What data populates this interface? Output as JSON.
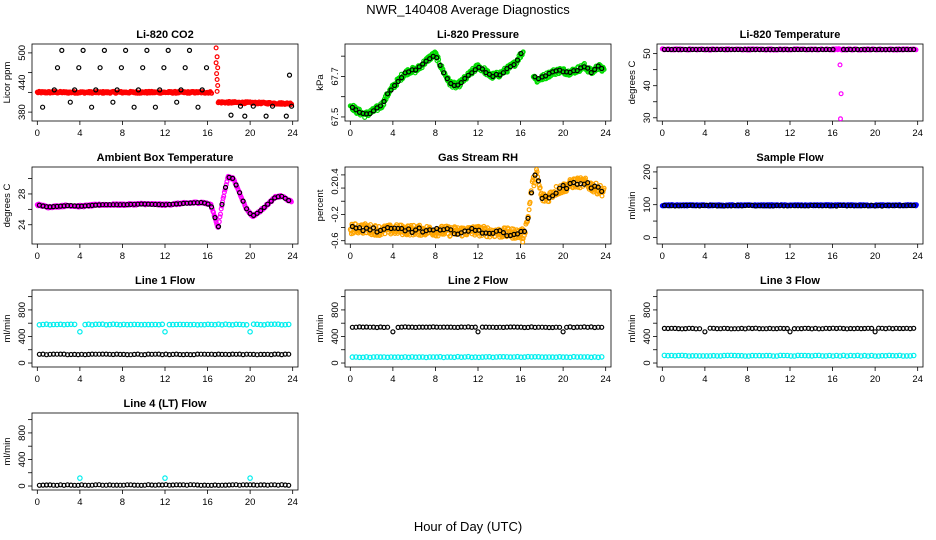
{
  "figure": {
    "title": "NWR_140408  Average Diagnostics",
    "xlabel": "Hour of Day (UTC)"
  },
  "colors": {
    "red": "#ff0000",
    "black": "#000000",
    "green": "#00dd00",
    "magenta": "#ff00ff",
    "orange": "#ffa500",
    "blue": "#0000ff",
    "cyan": "#00eeee"
  },
  "chart_data": [
    {
      "type": "scatter",
      "title": "Li-820 CO2",
      "ylabel": "Licor ppm",
      "xlim": [
        -0.5,
        24.5
      ],
      "ylim": [
        362,
        518
      ],
      "xticks": [
        0,
        4,
        8,
        12,
        16,
        20,
        24
      ],
      "xtick_labels": [
        "0",
        "4",
        "8",
        "12",
        "16",
        "20",
        "24"
      ],
      "yticks": [
        380,
        420,
        460,
        500
      ],
      "ytick_labels": [
        "380",
        "440",
        "500"
      ],
      "series": [
        {
          "name": "raw",
          "style": "red",
          "generator": "co2_red"
        },
        {
          "name": "outliers",
          "style": "black",
          "points": [
            [
              0.5,
              390
            ],
            [
              1.6,
              425
            ],
            [
              1.9,
              470
            ],
            [
              2.3,
              505
            ],
            [
              3.1,
              400
            ],
            [
              3.5,
              425
            ],
            [
              3.9,
              470
            ],
            [
              4.3,
              505
            ],
            [
              5.1,
              390
            ],
            [
              5.5,
              425
            ],
            [
              5.9,
              470
            ],
            [
              6.3,
              505
            ],
            [
              7.1,
              400
            ],
            [
              7.5,
              425
            ],
            [
              7.9,
              470
            ],
            [
              8.3,
              505
            ],
            [
              9.1,
              390
            ],
            [
              9.5,
              425
            ],
            [
              9.9,
              470
            ],
            [
              10.3,
              505
            ],
            [
              11.1,
              390
            ],
            [
              11.5,
              425
            ],
            [
              11.9,
              470
            ],
            [
              12.3,
              505
            ],
            [
              13.1,
              400
            ],
            [
              13.5,
              425
            ],
            [
              13.9,
              470
            ],
            [
              14.3,
              505
            ],
            [
              15.1,
              390
            ],
            [
              15.5,
              425
            ],
            [
              15.9,
              470
            ],
            [
              18.2,
              374
            ],
            [
              19.1,
              392
            ],
            [
              19.5,
              372
            ],
            [
              20.3,
              392
            ],
            [
              21.5,
              372
            ],
            [
              22.1,
              392
            ],
            [
              23.4,
              372
            ],
            [
              23.7,
              455
            ],
            [
              23.9,
              392
            ]
          ]
        }
      ]
    },
    {
      "type": "scatter",
      "title": "Li-820 Pressure",
      "ylabel": "kPa",
      "xlim": [
        -0.5,
        24.5
      ],
      "ylim": [
        67.48,
        67.86
      ],
      "xticks": [
        0,
        4,
        8,
        12,
        16,
        20,
        24
      ],
      "xtick_labels": [
        "0",
        "4",
        "8",
        "12",
        "16",
        "20",
        "24"
      ],
      "yticks": [
        67.5,
        67.6,
        67.7,
        67.8
      ],
      "ytick_labels": [
        "67.5",
        "67.7"
      ],
      "series": [
        {
          "name": "raw",
          "style": "green",
          "generator": "pressure_green"
        },
        {
          "name": "average",
          "style": "black",
          "generator": "pressure_black"
        }
      ]
    },
    {
      "type": "scatter",
      "title": "Li-820 Temperature",
      "ylabel": "degrees C",
      "xlim": [
        -0.5,
        24.5
      ],
      "ylim": [
        29,
        53
      ],
      "xticks": [
        0,
        4,
        8,
        12,
        16,
        20,
        24
      ],
      "xtick_labels": [
        "0",
        "4",
        "8",
        "12",
        "16",
        "20",
        "24"
      ],
      "yticks": [
        30,
        35,
        40,
        45,
        50
      ],
      "ytick_labels": [
        "30",
        "40",
        "50"
      ],
      "series": [
        {
          "name": "raw",
          "style": "magenta",
          "generator": "temp_magenta"
        },
        {
          "name": "average",
          "style": "black",
          "generator": "temp_black"
        }
      ]
    },
    {
      "type": "scatter",
      "title": "Ambient Box Temperature",
      "ylabel": "degrees C",
      "xlim": [
        -0.5,
        24.5
      ],
      "ylim": [
        21.5,
        31.5
      ],
      "xticks": [
        0,
        4,
        8,
        12,
        16,
        20,
        24
      ],
      "xtick_labels": [
        "0",
        "4",
        "8",
        "12",
        "16",
        "20",
        "24"
      ],
      "yticks": [
        24,
        26,
        28,
        30
      ],
      "ytick_labels": [
        "24",
        "28"
      ],
      "series": [
        {
          "name": "raw",
          "style": "magenta",
          "generator": "box_magenta"
        },
        {
          "name": "average",
          "style": "black",
          "generator": "box_black"
        }
      ]
    },
    {
      "type": "scatter",
      "title": "Gas Stream RH",
      "ylabel": "percent",
      "xlim": [
        -0.5,
        24.5
      ],
      "ylim": [
        -0.65,
        0.52
      ],
      "xticks": [
        0,
        4,
        8,
        12,
        16,
        20,
        24
      ],
      "xtick_labels": [
        "0",
        "4",
        "8",
        "12",
        "16",
        "20",
        "24"
      ],
      "yticks": [
        -0.6,
        -0.4,
        -0.2,
        0.0,
        0.2,
        0.4
      ],
      "ytick_labels": [
        "-0.6",
        "-0.2",
        "0.2",
        "0.4"
      ],
      "series": [
        {
          "name": "raw",
          "style": "orange",
          "generator": "rh_orange"
        },
        {
          "name": "average",
          "style": "black",
          "generator": "rh_black"
        }
      ]
    },
    {
      "type": "scatter",
      "title": "Sample Flow",
      "ylabel": "ml/min",
      "xlim": [
        -0.5,
        24.5
      ],
      "ylim": [
        -20,
        215
      ],
      "xticks": [
        0,
        4,
        8,
        12,
        16,
        20,
        24
      ],
      "xtick_labels": [
        "0",
        "4",
        "8",
        "12",
        "16",
        "20",
        "24"
      ],
      "yticks": [
        0,
        50,
        100,
        150,
        200
      ],
      "ytick_labels": [
        "0",
        "100",
        "200"
      ],
      "series": [
        {
          "name": "raw",
          "style": "blue",
          "generator": "flow_blue"
        },
        {
          "name": "average",
          "style": "black",
          "generator": "flow_black"
        }
      ]
    },
    {
      "type": "scatter",
      "title": "Line 1 Flow",
      "ylabel": "ml/min",
      "xlim": [
        -0.5,
        24.5
      ],
      "ylim": [
        -60,
        1100
      ],
      "xticks": [
        0,
        4,
        8,
        12,
        16,
        20,
        24
      ],
      "xtick_labels": [
        "0",
        "4",
        "8",
        "12",
        "16",
        "20",
        "24"
      ],
      "yticks": [
        0,
        200,
        400,
        600,
        800,
        1000
      ],
      "ytick_labels": [
        "0",
        "400",
        "800"
      ],
      "series": [
        {
          "name": "active",
          "style": "cyan",
          "value": 580,
          "dips": [
            [
              4,
              470
            ],
            [
              12,
              470
            ],
            [
              20,
              470
            ]
          ]
        },
        {
          "name": "idle",
          "style": "black",
          "value": 130
        }
      ]
    },
    {
      "type": "scatter",
      "title": "Line 2 Flow",
      "ylabel": "ml/min",
      "xlim": [
        -0.5,
        24.5
      ],
      "ylim": [
        -60,
        1100
      ],
      "xticks": [
        0,
        4,
        8,
        12,
        16,
        20,
        24
      ],
      "xtick_labels": [
        "0",
        "4",
        "8",
        "12",
        "16",
        "20",
        "24"
      ],
      "yticks": [
        0,
        200,
        400,
        600,
        800,
        1000
      ],
      "ytick_labels": [
        "0",
        "400",
        "800"
      ],
      "series": [
        {
          "name": "active",
          "style": "black",
          "value": 540,
          "dips": [
            [
              4,
              470
            ],
            [
              12,
              470
            ],
            [
              20,
              470
            ]
          ]
        },
        {
          "name": "idle",
          "style": "cyan",
          "value": 90
        }
      ]
    },
    {
      "type": "scatter",
      "title": "Line 3 Flow",
      "ylabel": "ml/min",
      "xlim": [
        -0.5,
        24.5
      ],
      "ylim": [
        -60,
        1100
      ],
      "xticks": [
        0,
        4,
        8,
        12,
        16,
        20,
        24
      ],
      "xtick_labels": [
        "0",
        "4",
        "8",
        "12",
        "16",
        "20",
        "24"
      ],
      "yticks": [
        0,
        200,
        400,
        600,
        800,
        1000
      ],
      "ytick_labels": [
        "0",
        "400",
        "800"
      ],
      "series": [
        {
          "name": "active",
          "style": "black",
          "value": 520,
          "dips": [
            [
              4,
              470
            ],
            [
              12,
              470
            ],
            [
              20,
              470
            ]
          ]
        },
        {
          "name": "idle",
          "style": "cyan",
          "value": 110
        }
      ]
    },
    {
      "type": "scatter",
      "title": "Line 4 (LT) Flow",
      "ylabel": "ml/min",
      "xlim": [
        -0.5,
        24.5
      ],
      "ylim": [
        -60,
        1100
      ],
      "xticks": [
        0,
        4,
        8,
        12,
        16,
        20,
        24
      ],
      "xtick_labels": [
        "0",
        "4",
        "8",
        "12",
        "16",
        "20",
        "24"
      ],
      "yticks": [
        0,
        200,
        400,
        600,
        800,
        1000
      ],
      "ytick_labels": [
        "0",
        "400",
        "800"
      ],
      "series": [
        {
          "name": "idle",
          "style": "black",
          "value": 15
        },
        {
          "name": "spikes",
          "style": "cyan",
          "points": [
            [
              4,
              120
            ],
            [
              12,
              120
            ],
            [
              20,
              120
            ]
          ]
        }
      ]
    }
  ]
}
